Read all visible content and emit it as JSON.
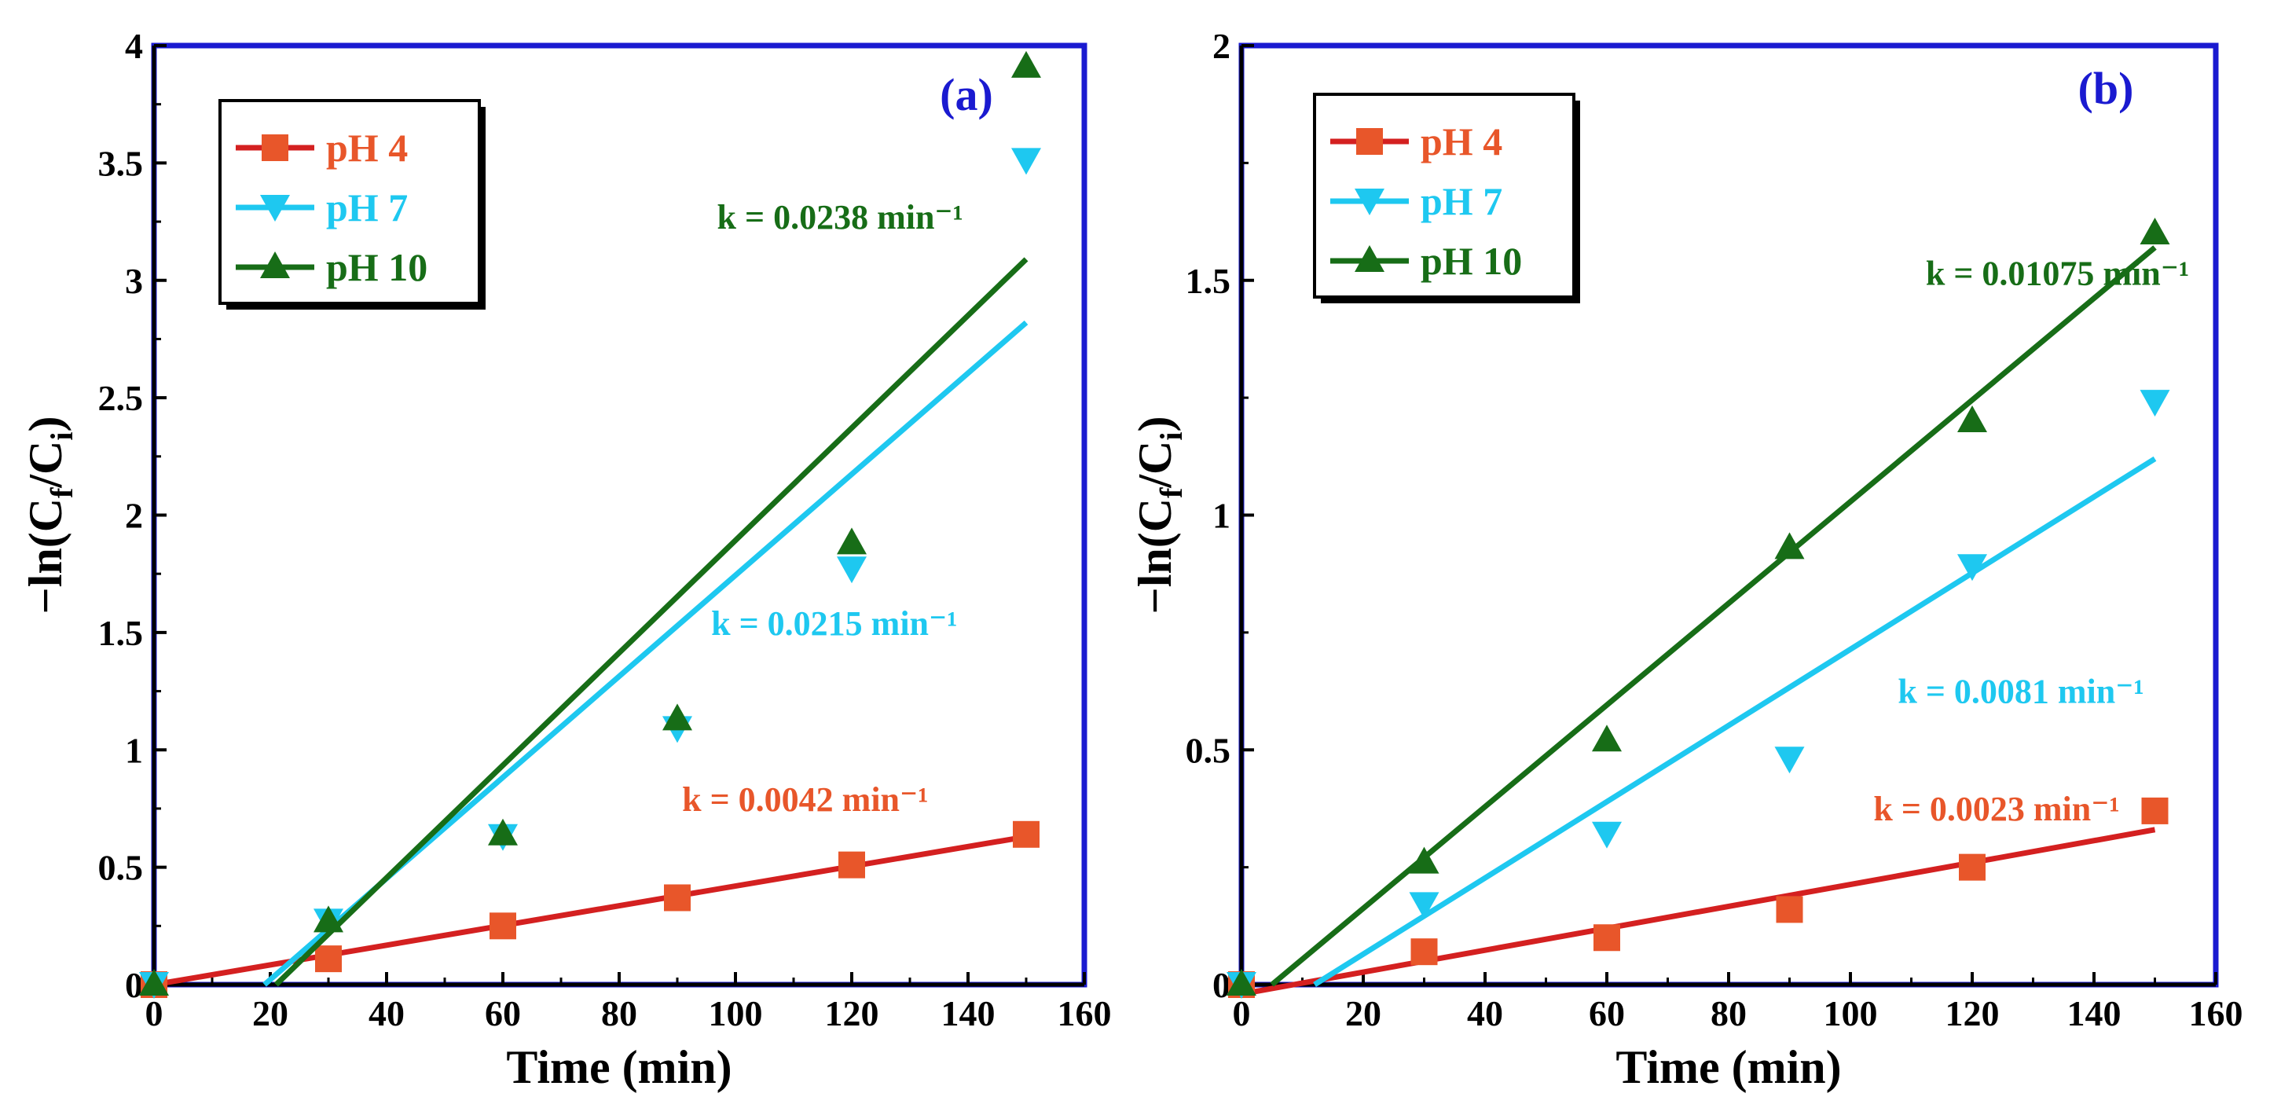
{
  "chart_data": [
    {
      "type": "scatter",
      "panel_label": "(a)",
      "xlabel": "Time (min)",
      "ylabel": "-ln(Cf/Ci)",
      "ylabel_parts": {
        "prefix": "−ln(C",
        "sub1": "f",
        "mid": "/C",
        "sub2": "i",
        "suffix": ")"
      },
      "xlim": [
        0,
        160
      ],
      "ylim": [
        0,
        4
      ],
      "xticks": [
        "0",
        "20",
        "40",
        "60",
        "80",
        "100",
        "120",
        "140",
        "160"
      ],
      "yticks": [
        "0",
        "0.5",
        "1",
        "1.5",
        "2",
        "2.5",
        "3",
        "3.5",
        "4"
      ],
      "legend_position": "top-left",
      "series": [
        {
          "name": "pH 4",
          "marker": "square",
          "marker_color": "#e8562a",
          "line_color": "#d42020",
          "x": [
            0,
            30,
            60,
            90,
            120,
            150
          ],
          "y": [
            0,
            0.11,
            0.25,
            0.37,
            0.51,
            0.64
          ],
          "fit": {
            "x": [
              0,
              150
            ],
            "y": [
              0,
              0.63
            ]
          },
          "k_label": "k = 0.0042 min⁻¹",
          "k_color": "#e8562a",
          "k_pos": {
            "x": 112,
            "y": 0.74
          }
        },
        {
          "name": "pH 7",
          "marker": "triangle-down",
          "marker_color": "#1ec8f0",
          "line_color": "#1ec8f0",
          "x": [
            0,
            30,
            60,
            90,
            120,
            150
          ],
          "y": [
            0,
            0.27,
            0.63,
            1.09,
            1.77,
            3.51
          ],
          "fit": {
            "x": [
              19,
              150
            ],
            "y": [
              0,
              2.82
            ]
          },
          "k_label": "k = 0.0215 min⁻¹",
          "k_color": "#1ec8f0",
          "k_pos": {
            "x": 117,
            "y": 1.49
          }
        },
        {
          "name": "pH 10",
          "marker": "triangle-up",
          "marker_color": "#176d17",
          "line_color": "#176d17",
          "x": [
            0,
            30,
            60,
            90,
            120,
            150
          ],
          "y": [
            0,
            0.27,
            0.64,
            1.13,
            1.88,
            3.91
          ],
          "fit": {
            "x": [
              21,
              150
            ],
            "y": [
              0,
              3.09
            ]
          },
          "k_label": "k = 0.0238 min⁻¹",
          "k_color": "#176d17",
          "k_pos": {
            "x": 118,
            "y": 3.22
          }
        }
      ]
    },
    {
      "type": "scatter",
      "panel_label": "(b)",
      "xlabel": "Time (min)",
      "ylabel": "-ln(Cf/Ci)",
      "ylabel_parts": {
        "prefix": "−ln(C",
        "sub1": "f",
        "mid": "/C",
        "sub2": "i",
        "suffix": ")"
      },
      "xlim": [
        0,
        160
      ],
      "ylim": [
        0,
        2
      ],
      "xticks": [
        "0",
        "20",
        "40",
        "60",
        "80",
        "100",
        "120",
        "140",
        "160"
      ],
      "yticks": [
        "0",
        "0.5",
        "1",
        "1.5",
        "2"
      ],
      "legend_position": "top-left",
      "series": [
        {
          "name": "pH 4",
          "marker": "square",
          "marker_color": "#e8562a",
          "line_color": "#d42020",
          "x": [
            0,
            30,
            60,
            90,
            120,
            150
          ],
          "y": [
            0,
            0.07,
            0.1,
            0.16,
            0.25,
            0.37
          ],
          "fit": {
            "x": [
              0,
              150
            ],
            "y": [
              -0.02,
              0.33
            ]
          },
          "k_label": "k = 0.0023 min⁻¹",
          "k_color": "#e8562a",
          "k_pos": {
            "x": 124,
            "y": 0.35
          }
        },
        {
          "name": "pH 7",
          "marker": "triangle-down",
          "marker_color": "#1ec8f0",
          "line_color": "#1ec8f0",
          "x": [
            0,
            30,
            60,
            90,
            120,
            150
          ],
          "y": [
            0,
            0.17,
            0.32,
            0.48,
            0.89,
            1.24
          ],
          "fit": {
            "x": [
              12,
              150
            ],
            "y": [
              0,
              1.12
            ]
          },
          "k_label": "k = 0.0081 min⁻¹",
          "k_color": "#1ec8f0",
          "k_pos": {
            "x": 128,
            "y": 0.6
          }
        },
        {
          "name": "pH 10",
          "marker": "triangle-up",
          "marker_color": "#176d17",
          "line_color": "#176d17",
          "x": [
            0,
            30,
            60,
            90,
            120,
            150
          ],
          "y": [
            0,
            0.26,
            0.52,
            0.93,
            1.2,
            1.6
          ],
          "fit": {
            "x": [
              5,
              150
            ],
            "y": [
              0,
              1.57
            ]
          },
          "k_label": "k = 0.01075 min⁻¹",
          "k_color": "#176d17",
          "k_pos": {
            "x": 134,
            "y": 1.49
          }
        }
      ]
    }
  ],
  "colors": {
    "frame": "#1a1ad0",
    "axis": "#000000"
  }
}
